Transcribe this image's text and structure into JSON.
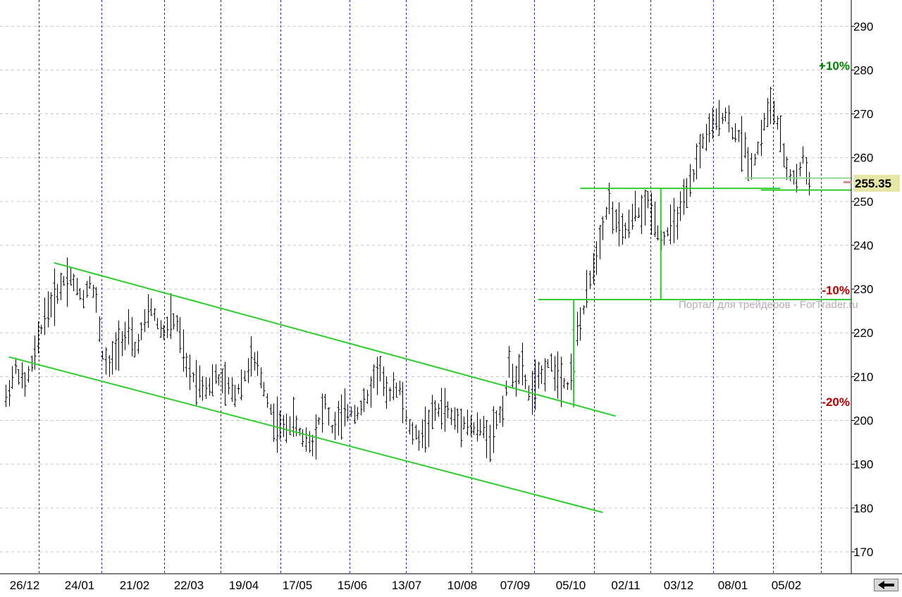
{
  "chart_data": {
    "type": "bar",
    "subtype": "ohlc-bars",
    "title": "",
    "xlabel": "",
    "ylabel": "",
    "ylim": [
      165,
      296
    ],
    "y_ticks": [
      170,
      180,
      190,
      200,
      210,
      220,
      230,
      240,
      250,
      260,
      270,
      280,
      290
    ],
    "x_tick_labels": [
      "26/12",
      "24/01",
      "21/02",
      "22/03",
      "19/04",
      "17/05",
      "15/06",
      "13/07",
      "10/08",
      "07/09",
      "05/10",
      "02/11",
      "03/12",
      "08/01",
      "05/02"
    ],
    "grid": "on",
    "last_price": {
      "label": "255.35",
      "value": 255.35,
      "color": "#e6e6a6"
    },
    "percent_markers": [
      {
        "label": "+10%",
        "value": 281,
        "color": "#008000"
      },
      {
        "label": "-10%",
        "value": 229.8,
        "color": "#b00000"
      },
      {
        "label": "-20%",
        "value": 204.3,
        "color": "#b00000"
      }
    ],
    "watermark": "Портал для трейдеров - ForTrader.ru",
    "bar_color": "#000000",
    "annotation_color": "#2ecc2e",
    "price_path": [
      [
        0,
        205
      ],
      [
        3,
        212
      ],
      [
        6,
        208
      ],
      [
        9,
        215
      ],
      [
        12,
        224
      ],
      [
        15,
        228
      ],
      [
        18,
        232
      ],
      [
        20,
        233
      ],
      [
        22,
        230
      ],
      [
        24,
        228
      ],
      [
        26,
        232
      ],
      [
        28,
        227
      ],
      [
        30,
        215
      ],
      [
        32,
        212
      ],
      [
        35,
        218
      ],
      [
        38,
        220
      ],
      [
        40,
        216
      ],
      [
        43,
        222
      ],
      [
        45,
        226
      ],
      [
        47,
        222
      ],
      [
        49,
        220
      ],
      [
        51,
        223
      ],
      [
        53,
        222
      ],
      [
        56,
        212
      ],
      [
        58,
        210
      ],
      [
        61,
        208
      ],
      [
        63,
        208
      ],
      [
        65,
        210
      ],
      [
        68,
        208
      ],
      [
        71,
        206
      ],
      [
        74,
        210
      ],
      [
        76,
        214
      ],
      [
        78,
        212
      ],
      [
        81,
        205
      ],
      [
        83,
        200
      ],
      [
        86,
        198
      ],
      [
        89,
        200
      ],
      [
        92,
        196
      ],
      [
        95,
        195
      ],
      [
        97,
        200
      ],
      [
        99,
        204
      ],
      [
        101,
        198
      ],
      [
        103,
        200
      ],
      [
        106,
        202
      ],
      [
        109,
        202
      ],
      [
        112,
        205
      ],
      [
        114,
        210
      ],
      [
        116,
        212
      ],
      [
        118,
        205
      ],
      [
        120,
        208
      ],
      [
        122,
        207
      ],
      [
        125,
        198
      ],
      [
        128,
        196
      ],
      [
        130,
        198
      ],
      [
        133,
        202
      ],
      [
        136,
        203
      ],
      [
        139,
        200
      ],
      [
        142,
        200
      ],
      [
        145,
        198
      ],
      [
        148,
        198
      ],
      [
        150,
        196
      ],
      [
        152,
        200
      ],
      [
        154,
        203
      ],
      [
        156,
        212
      ],
      [
        158,
        210
      ],
      [
        160,
        212
      ],
      [
        162,
        206
      ],
      [
        165,
        209
      ],
      [
        168,
        213
      ],
      [
        170,
        212
      ],
      [
        172,
        210
      ],
      [
        174,
        208
      ],
      [
        177,
        220
      ],
      [
        179,
        225
      ],
      [
        181,
        232
      ],
      [
        183,
        238
      ],
      [
        185,
        245
      ],
      [
        187,
        250
      ],
      [
        189,
        245
      ],
      [
        191,
        243
      ],
      [
        193,
        244
      ],
      [
        195,
        248
      ],
      [
        197,
        247
      ],
      [
        199,
        250
      ],
      [
        201,
        246
      ],
      [
        203,
        241
      ],
      [
        205,
        243
      ],
      [
        207,
        245
      ],
      [
        209,
        248
      ],
      [
        211,
        251
      ],
      [
        213,
        256
      ],
      [
        215,
        262
      ],
      [
        217,
        265
      ],
      [
        219,
        267
      ],
      [
        221,
        269
      ],
      [
        223,
        270
      ],
      [
        225,
        266
      ],
      [
        227,
        265
      ],
      [
        229,
        262
      ],
      [
        231,
        258
      ],
      [
        233,
        262
      ],
      [
        235,
        268
      ],
      [
        237,
        272
      ],
      [
        239,
        268
      ],
      [
        241,
        260
      ],
      [
        243,
        256
      ],
      [
        245,
        255
      ],
      [
        247,
        260
      ],
      [
        249,
        255
      ]
    ],
    "price_path_x_unit": "trading-day index (≈ 250 sessions across the plotted range)",
    "overlays": [
      {
        "name": "descending channel upper",
        "points": [
          [
            15,
            236
          ],
          [
            189,
            201
          ]
        ]
      },
      {
        "name": "descending channel lower",
        "points": [
          [
            1,
            214.5
          ],
          [
            185,
            179
          ]
        ]
      },
      {
        "name": "breakout level",
        "points": [
          [
            165,
            227.6
          ],
          [
            300,
            227.6
          ]
        ]
      },
      {
        "name": "breakout measure",
        "points": [
          [
            176,
            227.6
          ],
          [
            176,
            203
          ]
        ]
      },
      {
        "name": "resistance level",
        "points": [
          [
            178,
            253
          ],
          [
            240,
            253
          ]
        ]
      },
      {
        "name": "upper measure",
        "points": [
          [
            203,
            253
          ],
          [
            203,
            227.6
          ]
        ]
      },
      {
        "name": "support level",
        "points": [
          [
            234,
            252.6
          ],
          [
            300,
            252.6
          ]
        ]
      },
      {
        "name": "last price line",
        "points": [
          [
            229,
            255.35
          ],
          [
            300,
            255.35
          ]
        ]
      }
    ]
  }
}
